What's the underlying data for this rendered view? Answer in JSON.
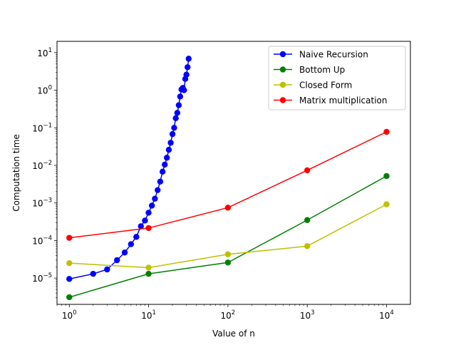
{
  "chart_data": {
    "type": "line",
    "title": "",
    "xlabel": "Value of n",
    "ylabel": "Computation time",
    "xscale": "log",
    "yscale": "log",
    "xlim": [
      0.7,
      20000
    ],
    "ylim": [
      2e-06,
      20
    ],
    "x_ticks": [
      {
        "value": 1,
        "base": "10",
        "exp": "0"
      },
      {
        "value": 10,
        "base": "10",
        "exp": "1"
      },
      {
        "value": 100,
        "base": "10",
        "exp": "2"
      },
      {
        "value": 1000,
        "base": "10",
        "exp": "3"
      },
      {
        "value": 10000,
        "base": "10",
        "exp": "4"
      }
    ],
    "y_ticks": [
      {
        "value": 1e-05,
        "base": "10",
        "exp": "−5"
      },
      {
        "value": 0.0001,
        "base": "10",
        "exp": "−4"
      },
      {
        "value": 0.001,
        "base": "10",
        "exp": "−3"
      },
      {
        "value": 0.01,
        "base": "10",
        "exp": "−2"
      },
      {
        "value": 0.1,
        "base": "10",
        "exp": "−1"
      },
      {
        "value": 1,
        "base": "10",
        "exp": "0"
      },
      {
        "value": 10,
        "base": "10",
        "exp": "1"
      }
    ],
    "grid": false,
    "legend_position": "top-right",
    "series": [
      {
        "name": "Naive Recursion",
        "color": "#0000ff",
        "x": [
          1,
          2,
          3,
          4,
          5,
          6,
          7,
          8,
          9,
          10,
          11,
          12,
          13,
          14,
          15,
          16,
          17,
          18,
          19,
          20,
          21,
          22,
          23,
          24,
          25,
          26,
          27,
          28,
          29,
          30,
          31,
          32
        ],
        "y": [
          9.5e-06,
          1.3e-05,
          1.7e-05,
          3e-05,
          4.8e-05,
          8e-05,
          0.000125,
          0.00024,
          0.00034,
          0.00055,
          0.00085,
          0.0013,
          0.0022,
          0.0037,
          0.0068,
          0.0105,
          0.016,
          0.026,
          0.04,
          0.068,
          0.1,
          0.18,
          0.25,
          0.4,
          0.68,
          1.05,
          1.15,
          1.0,
          2.0,
          2.6,
          4.1,
          6.9
        ]
      },
      {
        "name": "Bottom Up",
        "color": "#008000",
        "x": [
          1,
          10,
          100,
          1000,
          10000
        ],
        "y": [
          3.1e-06,
          1.3e-05,
          2.6e-05,
          0.00035,
          0.0052
        ]
      },
      {
        "name": "Closed Form",
        "color": "#bfbf00",
        "x": [
          1,
          10,
          100,
          1000,
          10000
        ],
        "y": [
          2.5e-05,
          1.9e-05,
          4.3e-05,
          7.1e-05,
          0.00092
        ]
      },
      {
        "name": "Matrix multiplication",
        "color": "#ff0000",
        "x": [
          1,
          10,
          100,
          1000,
          10000
        ],
        "y": [
          0.000118,
          0.000215,
          0.00075,
          0.0074,
          0.078
        ]
      }
    ]
  }
}
